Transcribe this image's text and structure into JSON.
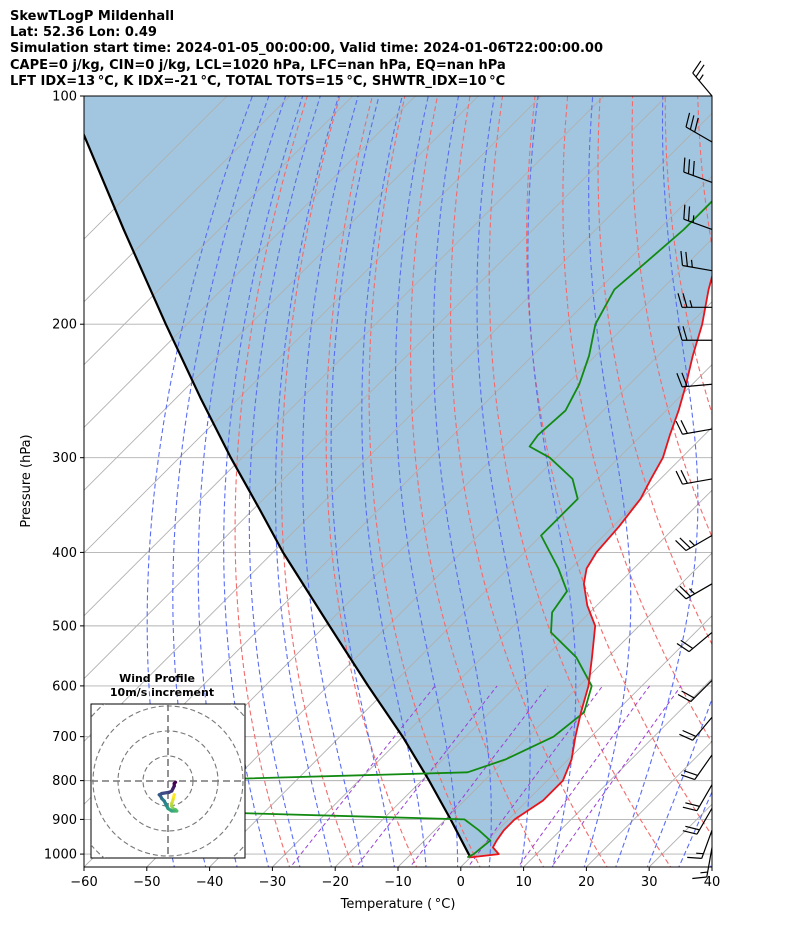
{
  "header": {
    "line1": "SkewTLogP Mildenhall",
    "line2": "Lat: 52.36   Lon: 0.49",
    "line3": "Simulation start time: 2024-01-05_00:00:00, Valid time: 2024-01-06T22:00:00.00",
    "line4": "CAPE=0 j/kg, CIN=0 j/kg, LCL=1020 hPa, LFC=nan hPa, EQ=nan hPa",
    "line5": "LFT IDX=13 °C, K IDX=-21 °C, TOTAL TOTS=15 °C, SHWTR_IDX=10 °C"
  },
  "colors": {
    "temperature": "#e8141b",
    "dewpoint": "#128a12",
    "parcel": "#000000",
    "fill": "#a2c6df",
    "dry_adiabat": "#f26b6b",
    "moist_adiabat": "#5a6df2",
    "mixing_ratio": "#9b3fd6",
    "isotherm": "#bbbbbb"
  },
  "chart_data": {
    "type": "line",
    "title": "",
    "xlabel": "Temperature ( °C)",
    "ylabel": "Pressure (hPa)",
    "x_ticks": [
      "−60",
      "−50",
      "−40",
      "−30",
      "−20",
      "−10",
      "0",
      "10",
      "20",
      "30",
      "40"
    ],
    "y_ticks": [
      "100",
      "200",
      "300",
      "400",
      "500",
      "600",
      "700",
      "800",
      "900",
      "1000"
    ],
    "xlim": [
      -60,
      40
    ],
    "ylim": [
      1040,
      100
    ],
    "y_scale": "log",
    "grid": true,
    "series": [
      {
        "key": "temperature",
        "pressure": [
          1010,
          1000,
          980,
          960,
          930,
          900,
          850,
          800,
          750,
          700,
          650,
          600,
          550,
          500,
          470,
          440,
          420,
          400,
          370,
          340,
          320,
          300,
          280,
          260,
          240,
          220,
          200,
          180,
          160,
          150,
          140,
          130,
          120,
          110,
          100
        ],
        "temperature": [
          0.0,
          4.0,
          2.0,
          1.5,
          1.0,
          1.0,
          2.5,
          2.5,
          0.5,
          -2.5,
          -5.5,
          -8.5,
          -12.5,
          -17.0,
          -21.5,
          -25.5,
          -27.5,
          -28.5,
          -29.0,
          -30.0,
          -31.5,
          -33.0,
          -35.5,
          -38.0,
          -41.0,
          -44.5,
          -48.0,
          -52.5,
          -57.0,
          -59.5,
          -62.0,
          -64.5,
          -67.5,
          -70.0,
          -73.0
        ]
      },
      {
        "key": "dewpoint",
        "pressure": [
          1010,
          1000,
          960,
          930,
          900,
          880,
          850,
          800,
          780,
          750,
          700,
          650,
          600,
          550,
          510,
          480,
          450,
          420,
          380,
          340,
          320,
          300,
          290,
          280,
          260,
          240,
          220,
          200,
          180,
          170,
          150,
          130,
          120,
          110,
          100
        ],
        "temperature": [
          -0.5,
          0,
          0.5,
          -3.0,
          -7.0,
          -50.0,
          -55.0,
          -60.0,
          -14.0,
          -10.0,
          -6.0,
          -5.0,
          -8.0,
          -15.0,
          -23.0,
          -26.0,
          -27.0,
          -32.0,
          -40.0,
          -40.0,
          -44.0,
          -51.0,
          -56.0,
          -56.5,
          -56.0,
          -58.0,
          -61.0,
          -65.0,
          -67.5,
          -67.0,
          -66.0,
          -66.0,
          -67.0,
          -67.5,
          -68.0
        ]
      },
      {
        "key": "parcel",
        "pressure": [
          1010,
          1000,
          900,
          800,
          700,
          600,
          500,
          400,
          350,
          300,
          250,
          200,
          150,
          100
        ],
        "temperature": [
          0.0,
          -0.8,
          -9.2,
          -18.8,
          -30.0,
          -43.6,
          -59.3,
          -78.4,
          -89.2,
          -101.8,
          -116.2,
          -133.4,
          -155.2,
          -185.4
        ]
      }
    ],
    "wind_barbs": [
      {
        "pressure": 100,
        "direction": 320,
        "speed": 25
      },
      {
        "pressure": 115,
        "direction": 300,
        "speed": 30
      },
      {
        "pressure": 130,
        "direction": 290,
        "speed": 30
      },
      {
        "pressure": 150,
        "direction": 290,
        "speed": 25
      },
      {
        "pressure": 170,
        "direction": 280,
        "speed": 25
      },
      {
        "pressure": 190,
        "direction": 270,
        "speed": 25
      },
      {
        "pressure": 210,
        "direction": 270,
        "speed": 20
      },
      {
        "pressure": 240,
        "direction": 265,
        "speed": 20
      },
      {
        "pressure": 275,
        "direction": 260,
        "speed": 20
      },
      {
        "pressure": 320,
        "direction": 260,
        "speed": 20
      },
      {
        "pressure": 380,
        "direction": 240,
        "speed": 25
      },
      {
        "pressure": 440,
        "direction": 240,
        "speed": 25
      },
      {
        "pressure": 510,
        "direction": 230,
        "speed": 20
      },
      {
        "pressure": 590,
        "direction": 225,
        "speed": 20
      },
      {
        "pressure": 660,
        "direction": 220,
        "speed": 20
      },
      {
        "pressure": 740,
        "direction": 215,
        "speed": 20
      },
      {
        "pressure": 810,
        "direction": 210,
        "speed": 20
      },
      {
        "pressure": 870,
        "direction": 210,
        "speed": 20
      },
      {
        "pressure": 930,
        "direction": 200,
        "speed": 15
      },
      {
        "pressure": 980,
        "direction": 190,
        "speed": 15
      }
    ],
    "inset": {
      "title_line1": "Wind Profile",
      "title_line2": "10m/s increment",
      "hodograph_u": [
        2.5,
        2.0,
        1.5,
        1.5,
        2.0,
        2.5,
        3.0,
        3.5,
        2.5,
        1.5,
        0.0,
        -0.5,
        -1.0,
        -1.5,
        -2.5,
        -3.0,
        -3.5,
        -2.5,
        0.5,
        1.5,
        2.0,
        2.5,
        2.5,
        3.0
      ],
      "hodograph_v": [
        -5.5,
        -7.5,
        -9.0,
        -10.0,
        -11.0,
        -11.5,
        -11.5,
        -12.0,
        -12.0,
        -12.0,
        -11.0,
        -10.0,
        -9.0,
        -8.0,
        -7.0,
        -6.0,
        -5.5,
        -5.0,
        -4.5,
        -4.0,
        -3.0,
        -2.0,
        -1.0,
        -0.5
      ]
    }
  }
}
